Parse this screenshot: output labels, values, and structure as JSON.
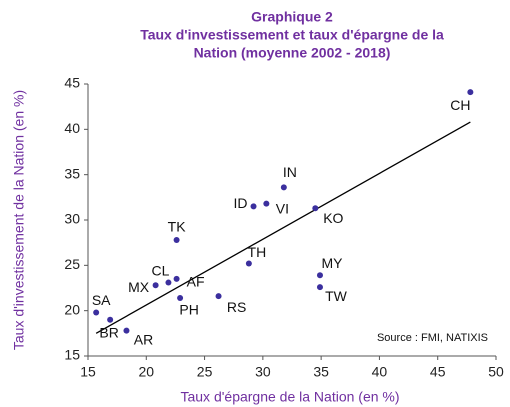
{
  "chart_data": {
    "type": "scatter",
    "title": [
      "Graphique 2",
      "Taux d'investissement et taux d'épargne de la",
      "Nation (moyenne 2002 - 2018)"
    ],
    "xlabel": "Taux d'épargne de la Nation (en %)",
    "ylabel": "Taux d'investissement de la Nation (en %)",
    "annotation": "Source : FMI, NATIXIS",
    "labels": [
      "CH",
      "IN",
      "VI",
      "ID",
      "KO",
      "TK",
      "TH",
      "MY",
      "TW",
      "CL",
      "MX",
      "AF",
      "PH",
      "RS",
      "SA",
      "BR",
      "AR"
    ],
    "x": [
      47.8,
      31.8,
      30.3,
      29.2,
      34.5,
      22.6,
      28.8,
      34.9,
      34.9,
      21.9,
      20.8,
      22.6,
      22.9,
      26.2,
      15.7,
      16.9,
      18.3
    ],
    "values": [
      44.1,
      33.6,
      31.8,
      31.5,
      31.3,
      27.8,
      25.2,
      23.9,
      22.6,
      23.1,
      22.8,
      23.5,
      21.4,
      21.6,
      19.8,
      19.0,
      17.8
    ],
    "color": "#3b2f9e",
    "trendline": {
      "x": [
        15.7,
        47.8
      ],
      "values": [
        17.5,
        40.8
      ]
    },
    "xlim": [
      15,
      50
    ],
    "xticks": [
      15,
      20,
      25,
      30,
      35,
      40,
      45,
      50
    ],
    "ylim": [
      15,
      45
    ],
    "yticks": [
      15,
      20,
      25,
      30,
      35,
      40,
      45
    ]
  }
}
